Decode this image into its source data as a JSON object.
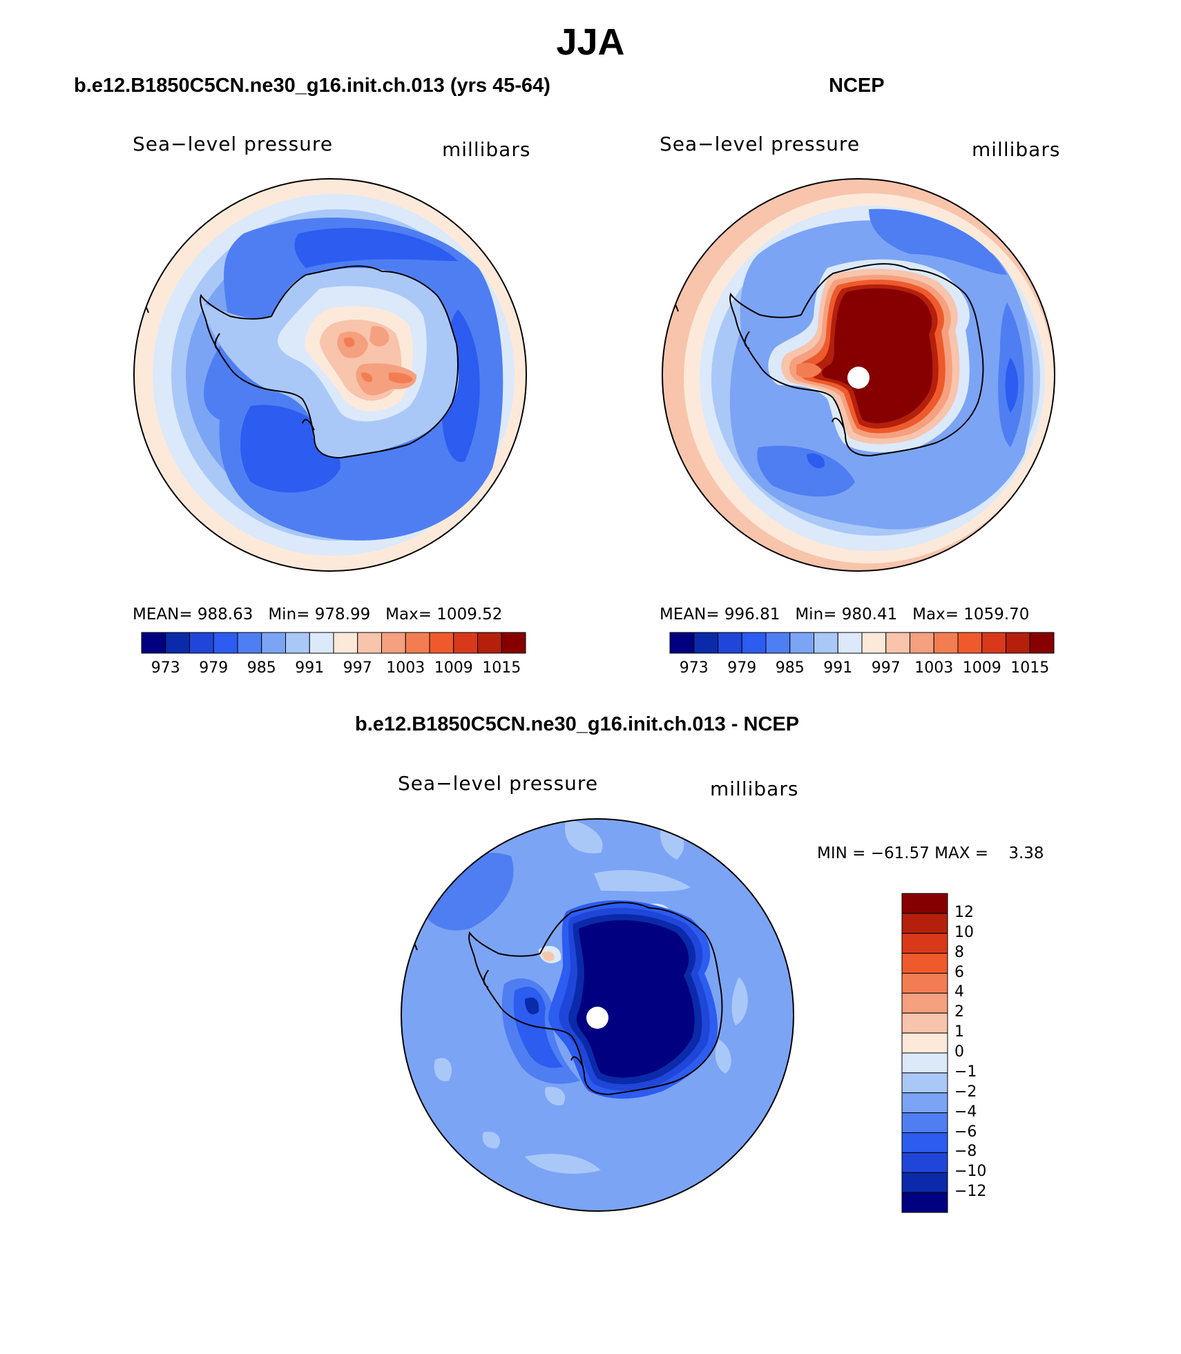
{
  "title": "JJA",
  "panels": [
    {
      "title": "b.e12.B1850C5CN.ne30_g16.init.ch.013 (yrs 45-64)",
      "left_label": "Sea−level pressure",
      "right_label": "millibars",
      "stats": {
        "mean_label": "MEAN=",
        "mean": "988.63",
        "min_label": "Min=",
        "min": "978.99",
        "max_label": "Max=",
        "max": "1009.52"
      }
    },
    {
      "title": "NCEP",
      "left_label": "Sea−level pressure",
      "right_label": "millibars",
      "stats": {
        "mean_label": "MEAN=",
        "mean": "996.81",
        "min_label": "Min=",
        "min": "980.41",
        "max_label": "Max=",
        "max": "1059.70"
      }
    },
    {
      "title": "b.e12.B1850C5CN.ne30_g16.init.ch.013 - NCEP",
      "left_label": "Sea−level pressure",
      "right_label": "millibars",
      "minmax": "MIN = −61.57 MAX =    3.38"
    }
  ],
  "horizontal_colorbar": {
    "tick_labels": [
      "973",
      "979",
      "985",
      "991",
      "997",
      "1003",
      "1009",
      "1015"
    ],
    "colors": [
      "#000080",
      "#0a2aaa",
      "#1f46d8",
      "#2c5cf0",
      "#4f7ef2",
      "#7ca4f5",
      "#a9c8f8",
      "#dbe9fb",
      "#fde9d9",
      "#f8c4ac",
      "#f5a07f",
      "#f37d53",
      "#ee5a2c",
      "#d8391a",
      "#b4200c",
      "#870000"
    ]
  },
  "vertical_colorbar": {
    "tick_labels": [
      "12",
      "10",
      "8",
      "6",
      "4",
      "2",
      "1",
      "0",
      "−1",
      "−2",
      "−4",
      "−6",
      "−8",
      "−10",
      "−12"
    ],
    "colors": [
      "#870000",
      "#b4200c",
      "#d8391a",
      "#ee5a2c",
      "#f37d53",
      "#f5a07f",
      "#f8c4ac",
      "#fde9d9",
      "#dbe9fb",
      "#a9c8f8",
      "#7ca4f5",
      "#4f7ef2",
      "#2c5cf0",
      "#1f46d8",
      "#0a2aaa",
      "#000080"
    ]
  }
}
